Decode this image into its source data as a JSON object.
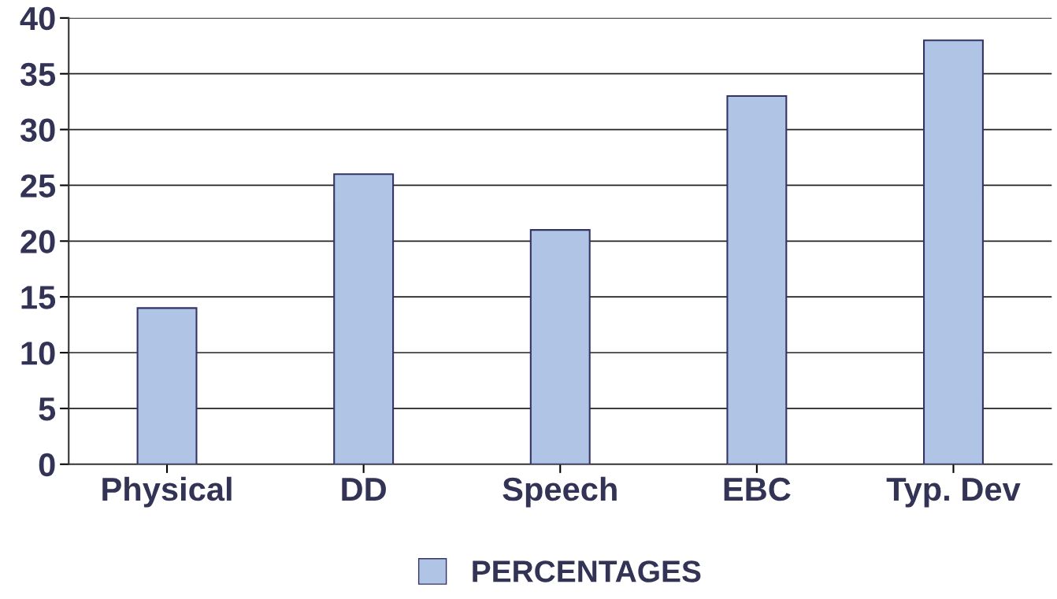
{
  "chart_data": {
    "type": "bar",
    "categories": [
      "Physical",
      "DD",
      "Speech",
      "EBC",
      "Typ. Dev"
    ],
    "series": [
      {
        "name": "PERCENTAGES",
        "color": "#b0c4e6",
        "values": [
          14,
          26,
          21,
          33,
          38
        ]
      }
    ],
    "ylim": [
      0,
      40
    ],
    "yticks": [
      0,
      5,
      10,
      15,
      20,
      25,
      30,
      35,
      40
    ],
    "grid": "y",
    "legend": "bottom"
  }
}
